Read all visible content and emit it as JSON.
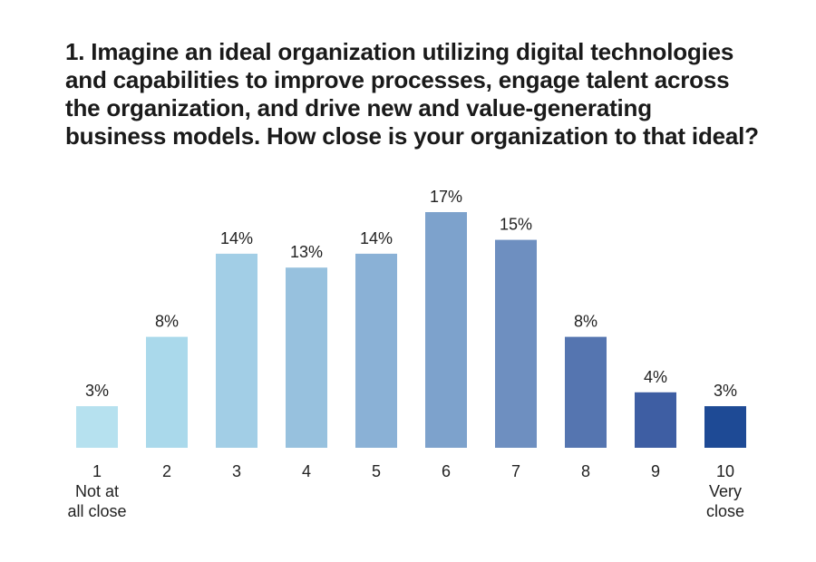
{
  "title_lines": [
    "1. Imagine an ideal organization utilizing digital technologies",
    "and capabilities to improve processes, engage talent across",
    "the organization, and drive new and value-generating",
    "business models. How close is your organization to that ideal?"
  ],
  "chart_data": {
    "type": "bar",
    "title": "1. Imagine an ideal organization utilizing digital technologies and capabilities to improve processes, engage talent across the organization, and drive new and value-generating business models. How close is your organization to that ideal?",
    "categories": [
      "1",
      "2",
      "3",
      "4",
      "5",
      "6",
      "7",
      "8",
      "9",
      "10"
    ],
    "category_sublabels": [
      [
        "Not at",
        "all close"
      ],
      [],
      [],
      [],
      [],
      [],
      [],
      [],
      [],
      [
        "Very",
        "close"
      ]
    ],
    "values": [
      3,
      8,
      14,
      13,
      14,
      17,
      15,
      8,
      4,
      3
    ],
    "value_labels": [
      "3%",
      "8%",
      "14%",
      "13%",
      "14%",
      "17%",
      "15%",
      "8%",
      "4%",
      "3%"
    ],
    "unit": "%",
    "xlabel": "",
    "ylabel": "",
    "ylim": [
      0,
      17
    ],
    "grid": false,
    "legend": "none",
    "colors": [
      "#b6e1ef",
      "#aad9eb",
      "#a2cee6",
      "#97c1de",
      "#8ab1d6",
      "#7da2cc",
      "#6e8fc0",
      "#5575b0",
      "#3e5ea3",
      "#1e4a95"
    ]
  }
}
